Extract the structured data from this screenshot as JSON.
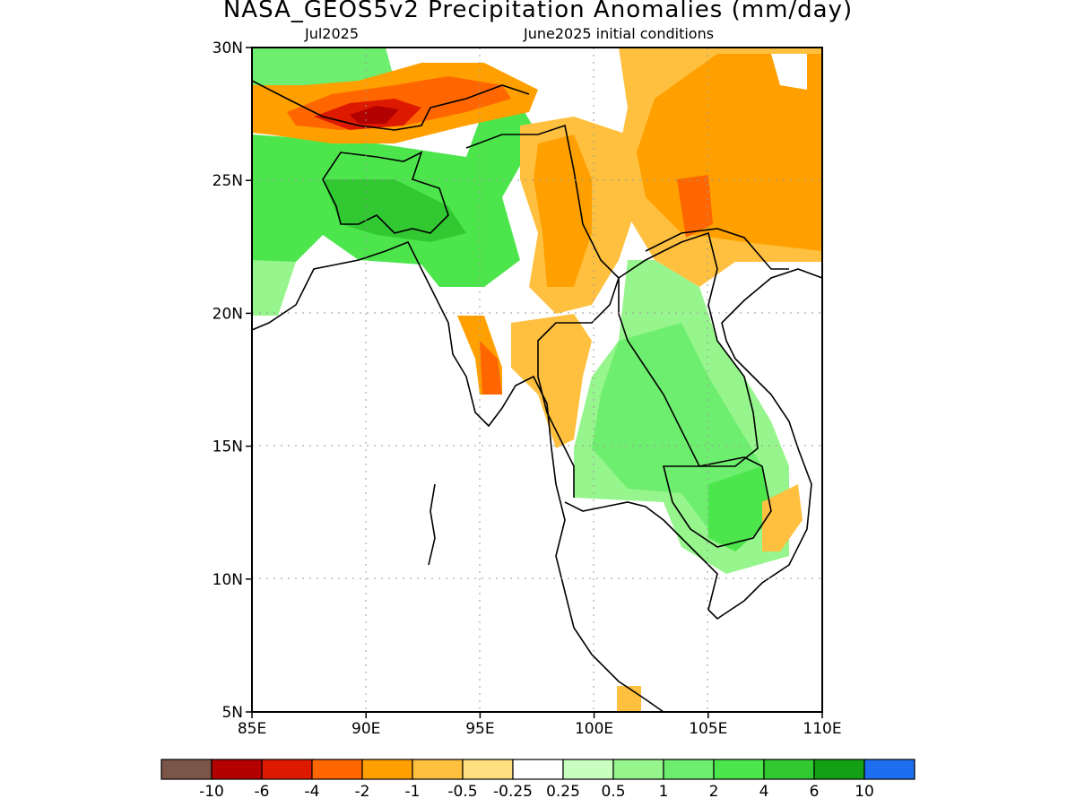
{
  "title": "NASA_GEOS5v2 Precipitation Anomalies (mm/day)",
  "subtitle_left": "Jul2025",
  "subtitle_right": "June2025 initial conditions",
  "map": {
    "lon_range": [
      85,
      110
    ],
    "lat_range": [
      5,
      30
    ],
    "x_ticks": [
      "85E",
      "90E",
      "95E",
      "100E",
      "105E",
      "110E"
    ],
    "y_ticks": [
      "30N",
      "25N",
      "20N",
      "15N",
      "10N",
      "5N"
    ]
  },
  "colorbar": {
    "colors": [
      "#7a5548",
      "#b30000",
      "#dd1a00",
      "#ff6600",
      "#ffa000",
      "#ffc040",
      "#ffe080",
      "#ffffff",
      "#c8ffc0",
      "#96f58c",
      "#6eee6e",
      "#4ce64c",
      "#32c832",
      "#14a014",
      "#1e6ef0"
    ],
    "labels": [
      "-10",
      "-6",
      "-4",
      "-2",
      "-1",
      "-0.5",
      "-0.25",
      "0.25",
      "0.5",
      "1",
      "2",
      "4",
      "6",
      "10"
    ]
  }
}
